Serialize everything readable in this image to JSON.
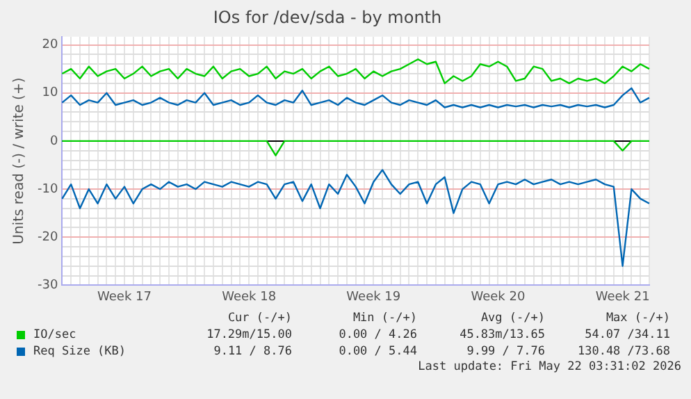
{
  "chart_data": {
    "type": "line",
    "title": "IOs for /dev/sda - by month",
    "ylabel": "Units read (-) / write (+)",
    "categories": [
      null,
      null,
      null,
      null,
      null,
      null,
      null,
      "Week 17",
      null,
      null,
      null,
      null,
      null,
      null,
      null,
      null,
      null,
      null,
      null,
      null,
      null,
      "Week 18",
      null,
      null,
      null,
      null,
      null,
      null,
      null,
      null,
      null,
      null,
      null,
      null,
      null,
      "Week 19",
      null,
      null,
      null,
      null,
      null,
      null,
      null,
      null,
      null,
      null,
      null,
      null,
      null,
      "Week 20",
      null,
      null,
      null,
      null,
      null,
      null,
      null,
      null,
      null,
      null,
      null,
      null,
      null,
      "Week 21",
      null,
      null,
      null
    ],
    "series": [
      {
        "name": "IO/sec",
        "color": "#00cc00",
        "values": [
          14,
          15,
          13,
          15.5,
          13.5,
          14.5,
          15,
          13,
          14,
          15.5,
          13.5,
          14.5,
          15,
          13,
          15,
          14,
          13.5,
          15.5,
          13,
          14.5,
          15,
          13.5,
          14,
          15.5,
          13,
          14.5,
          14,
          15,
          13,
          14.5,
          15.5,
          13.5,
          14,
          15,
          13,
          14.5,
          13.5,
          14.5,
          15,
          16,
          17,
          16,
          16.5,
          12,
          13.5,
          12.5,
          13.5,
          16,
          15.5,
          16.5,
          15.5,
          12.5,
          13,
          15.5,
          15,
          12.5,
          13,
          12,
          13,
          12.5,
          13,
          12,
          13.5,
          15.5,
          14.5,
          16,
          15
        ]
      },
      {
        "color": "#00cc00",
        "values": [
          0,
          0,
          0,
          0,
          0,
          0,
          0,
          0,
          0,
          0,
          0,
          0,
          0,
          0,
          0,
          0,
          0,
          0,
          0,
          0,
          0,
          0,
          0,
          0,
          -3,
          0,
          0,
          0,
          0,
          0,
          0,
          0,
          0,
          0,
          0,
          0,
          0,
          0,
          0,
          0,
          0,
          0,
          0,
          0,
          0,
          0,
          0,
          0,
          0,
          0,
          0,
          0,
          0,
          0,
          0,
          0,
          0,
          0,
          0,
          0,
          0,
          0,
          0,
          -2,
          0,
          0,
          0
        ]
      },
      {
        "name": "Req Size (KB)",
        "color": "#0066b3",
        "values": [
          8,
          9.5,
          7.5,
          8.5,
          8,
          10,
          7.5,
          8,
          8.5,
          7.5,
          8,
          9,
          8,
          7.5,
          8.5,
          8,
          10,
          7.5,
          8,
          8.5,
          7.5,
          8,
          9.5,
          8,
          7.5,
          8.5,
          8,
          10.5,
          7.5,
          8,
          8.5,
          7.5,
          9,
          8,
          7.5,
          8.5,
          9.5,
          8,
          7.5,
          8.5,
          8,
          7.5,
          8.5,
          7,
          7.5,
          7,
          7.5,
          7,
          7.5,
          7,
          7.5,
          7.2,
          7.5,
          7,
          7.5,
          7.2,
          7.5,
          7,
          7.5,
          7.2,
          7.5,
          7,
          7.5,
          9.5,
          11,
          8,
          9
        ]
      },
      {
        "color": "#0066b3",
        "values": [
          -12,
          -9,
          -14,
          -10,
          -13,
          -9,
          -12,
          -9.5,
          -13,
          -10,
          -9,
          -10,
          -8.5,
          -9.5,
          -9,
          -10,
          -8.5,
          -9,
          -9.5,
          -8.5,
          -9,
          -9.5,
          -8.5,
          -9,
          -12,
          -9,
          -8.5,
          -12.5,
          -9,
          -14,
          -9,
          -11,
          -7,
          -9.5,
          -13,
          -8.5,
          -6,
          -9,
          -11,
          -9,
          -8.5,
          -13,
          -9,
          -7.5,
          -15,
          -10,
          -8.5,
          -9,
          -13,
          -9,
          -8.5,
          -9,
          -8,
          -9,
          -8.5,
          -8,
          -9,
          -8.5,
          -9,
          -8.5,
          -8,
          -9,
          -9.5,
          -26,
          -10,
          -12,
          -13
        ]
      }
    ],
    "ylim": [
      -30,
      21.7
    ],
    "yticks": [
      -30,
      {
        "value": -28,
        "label": null
      },
      {
        "value": -26,
        "label": null
      },
      {
        "value": -24,
        "label": null
      },
      {
        "value": -22,
        "label": null
      },
      -20,
      {
        "value": -18,
        "label": null
      },
      {
        "value": -16,
        "label": null
      },
      {
        "value": -14,
        "label": null
      },
      {
        "value": -12,
        "label": null
      },
      -10,
      {
        "value": -8,
        "label": null
      },
      {
        "value": -6,
        "label": null
      },
      {
        "value": -4,
        "label": null
      },
      {
        "value": -2,
        "label": null
      },
      0,
      {
        "value": 2,
        "label": null
      },
      {
        "value": 4,
        "label": null
      },
      {
        "value": 6,
        "label": null
      },
      {
        "value": 8,
        "label": null
      },
      10,
      {
        "value": 12,
        "label": null
      },
      {
        "value": 14,
        "label": null
      },
      {
        "value": 16,
        "label": null
      },
      {
        "value": 18,
        "label": null
      },
      20
    ],
    "grid": true,
    "legend": "bottom",
    "marker": "none",
    "line_style": "solid",
    "annotations": [
      "Cur (-/+)",
      "Min (-/+)",
      "Avg (-/+)",
      "Max (-/+)",
      "17.29m/15.00",
      "0.00 / 4.26",
      "45.83m/13.65",
      "54.07 /34.11",
      "9.11 / 8.76",
      "0.00 / 5.44",
      "9.99 / 7.76",
      "130.48 /73.68",
      "Last update: Fri May 22 03:31:02 2026"
    ]
  }
}
